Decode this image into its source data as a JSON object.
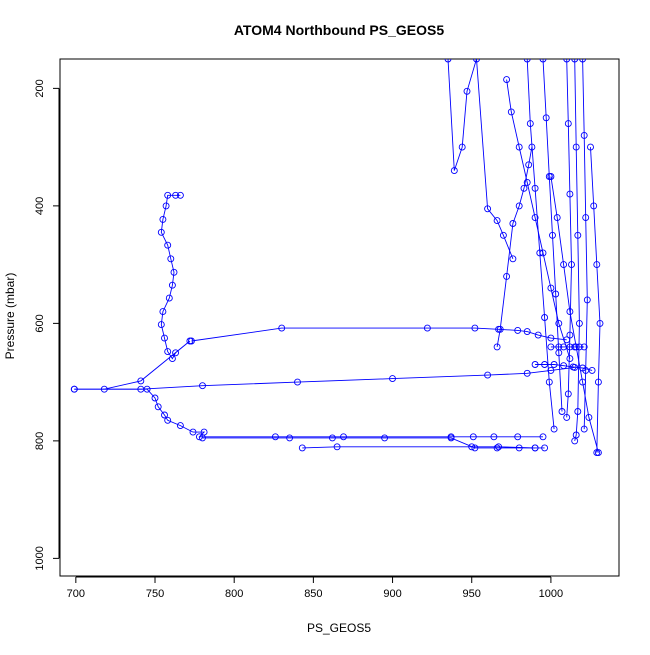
{
  "chart_data": {
    "type": "line",
    "title": "ATOM4 Northbound PS_GEOS5",
    "xlabel": "PS_GEOS5",
    "ylabel": "Pressure (mbar)",
    "xlim": [
      690,
      1043
    ],
    "ylim": [
      1030,
      150
    ],
    "y_reversed": true,
    "grid": false,
    "line_color": "#0000ff",
    "x_ticks": [
      700,
      750,
      800,
      850,
      900,
      950,
      1000
    ],
    "y_ticks": [
      200,
      400,
      600,
      800,
      1000
    ],
    "series": [
      {
        "x": [
          766,
          763,
          758,
          757,
          755,
          754,
          758,
          760,
          762,
          761,
          759,
          755,
          754,
          756,
          758,
          761,
          763,
          772,
          741,
          718,
          699,
          745,
          750,
          752,
          756,
          758,
          766,
          774,
          781,
          778,
          826,
          869,
          937,
          951,
          964,
          979,
          995
        ],
        "y": [
          382,
          382,
          382,
          400,
          423,
          445,
          467,
          490,
          513,
          535,
          557,
          580,
          602,
          625,
          648,
          660,
          650,
          630,
          698,
          712,
          712,
          712,
          727,
          742,
          756,
          765,
          774,
          785,
          785,
          793,
          793,
          793,
          793,
          793,
          793,
          793,
          793
        ]
      },
      {
        "x": [
          773,
          830,
          922,
          952,
          967,
          979,
          985,
          992,
          1000,
          1010
        ],
        "y": [
          630,
          608,
          608,
          608,
          610,
          612,
          614,
          620,
          625,
          628
        ]
      },
      {
        "x": [
          699,
          741,
          780,
          840,
          900,
          960,
          985,
          1000,
          1015
        ],
        "y": [
          712,
          712,
          706,
          700,
          694,
          688,
          685,
          680,
          675
        ]
      },
      {
        "x": [
          780,
          835,
          862,
          895,
          937,
          952,
          966,
          980,
          990,
          996
        ],
        "y": [
          795,
          795,
          795,
          795,
          795,
          812,
          812,
          812,
          812,
          812
        ]
      },
      {
        "x": [
          843,
          865,
          950,
          967,
          990
        ],
        "y": [
          812,
          810,
          810,
          810,
          812
        ]
      },
      {
        "x": [
          935,
          939,
          944,
          947,
          953,
          960,
          966,
          970,
          976
        ],
        "y": [
          150,
          340,
          300,
          205,
          150,
          405,
          425,
          450,
          490
        ]
      },
      {
        "x": [
          966,
          968,
          972,
          976,
          980,
          983,
          986,
          988
        ],
        "y": [
          640,
          610,
          520,
          430,
          400,
          370,
          330,
          300
        ]
      },
      {
        "x": [
          972,
          975,
          980,
          985,
          990,
          995,
          1000,
          1005,
          1012
        ],
        "y": [
          185,
          240,
          300,
          360,
          420,
          480,
          540,
          600,
          660
        ]
      },
      {
        "x": [
          1000,
          1005,
          1008,
          1012,
          1015,
          1018,
          1021
        ],
        "y": [
          640,
          640,
          640,
          640,
          640,
          640,
          640
        ]
      },
      {
        "x": [
          990,
          996,
          1002,
          1008,
          1014,
          1020,
          1026
        ],
        "y": [
          670,
          670,
          670,
          672,
          674,
          676,
          680
        ]
      },
      {
        "x": [
          1000,
          1004,
          1008,
          1012,
          1016,
          1020,
          1024,
          1030
        ],
        "y": [
          350,
          420,
          500,
          580,
          640,
          700,
          760,
          820
        ]
      },
      {
        "x": [
          1015,
          1016,
          1017,
          1018,
          1017,
          1016,
          1015
        ],
        "y": [
          150,
          300,
          450,
          600,
          750,
          790,
          800
        ]
      },
      {
        "x": [
          1010,
          1011,
          1012,
          1013,
          1012,
          1011,
          1010
        ],
        "y": [
          150,
          260,
          380,
          500,
          620,
          720,
          760
        ]
      },
      {
        "x": [
          1020,
          1021,
          1022,
          1023,
          1022,
          1021
        ],
        "y": [
          150,
          280,
          420,
          560,
          680,
          780
        ]
      },
      {
        "x": [
          995,
          997,
          999,
          1001,
          1003,
          1005,
          1007
        ],
        "y": [
          150,
          250,
          350,
          450,
          550,
          650,
          750
        ]
      },
      {
        "x": [
          985,
          987,
          990,
          993,
          996,
          999,
          1002
        ],
        "y": [
          150,
          260,
          370,
          480,
          590,
          700,
          780
        ]
      },
      {
        "x": [
          1025,
          1027,
          1029,
          1031,
          1030,
          1029
        ],
        "y": [
          300,
          400,
          500,
          600,
          700,
          820
        ]
      }
    ]
  }
}
